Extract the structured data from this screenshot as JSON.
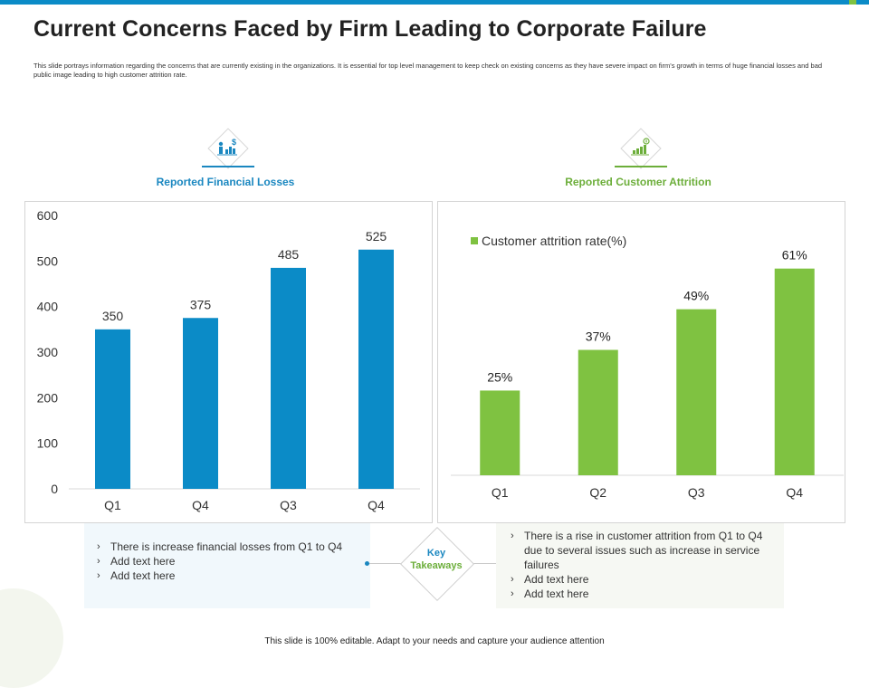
{
  "title": "Current Concerns Faced by Firm Leading to Corporate Failure",
  "description": "This slide portrays information regarding the concerns that are currently existing in the organizations.  It is essential for top level management to keep check on existing concerns as they have severe impact on firm's growth  in terms of huge financial losses and bad public image leading  to high customer attrition rate.",
  "colors": {
    "blue": "#0b8bc7",
    "green": "#7fc241",
    "title_blue": "#1a87c0",
    "title_green": "#6cae3a"
  },
  "sections": {
    "left": {
      "label": "Reported Financial Losses",
      "icon": "financial-chart-icon"
    },
    "right": {
      "label": "Reported Customer Attrition",
      "icon": "growth-chart-icon"
    }
  },
  "chart_data": [
    {
      "type": "bar",
      "title": "",
      "categories": [
        "Q1",
        "Q4",
        "Q3",
        "Q4"
      ],
      "values": [
        350,
        375,
        485,
        525
      ],
      "data_labels": [
        "350",
        "375",
        "485",
        "525"
      ],
      "yticks": [
        "0",
        "100",
        "200",
        "300",
        "400",
        "500",
        "600"
      ],
      "ylim": [
        0,
        600
      ],
      "xlabel": "",
      "ylabel": "",
      "color": "#0b8bc7"
    },
    {
      "type": "bar",
      "title": "",
      "legend": "Customer attrition rate(%)",
      "categories": [
        "Q1",
        "Q2",
        "Q3",
        "Q4"
      ],
      "values": [
        25,
        37,
        49,
        61
      ],
      "data_labels": [
        "25%",
        "37%",
        "49%",
        "61%"
      ],
      "ylim": [
        0,
        70
      ],
      "xlabel": "",
      "ylabel": "",
      "color": "#7fc241"
    }
  ],
  "takeaways": {
    "key_label_line1": "Key",
    "key_label_line2": "Takeaways",
    "left": [
      "There is increase financial  losses from Q1 to Q4",
      "Add text here",
      "Add text here"
    ],
    "right": [
      "There is a rise in customer attrition from Q1 to Q4 due to several  issues such as increase in service failures",
      "Add text here",
      "Add text here"
    ]
  },
  "footer": "This slide is 100% editable.  Adapt to your needs and capture your audience attention"
}
